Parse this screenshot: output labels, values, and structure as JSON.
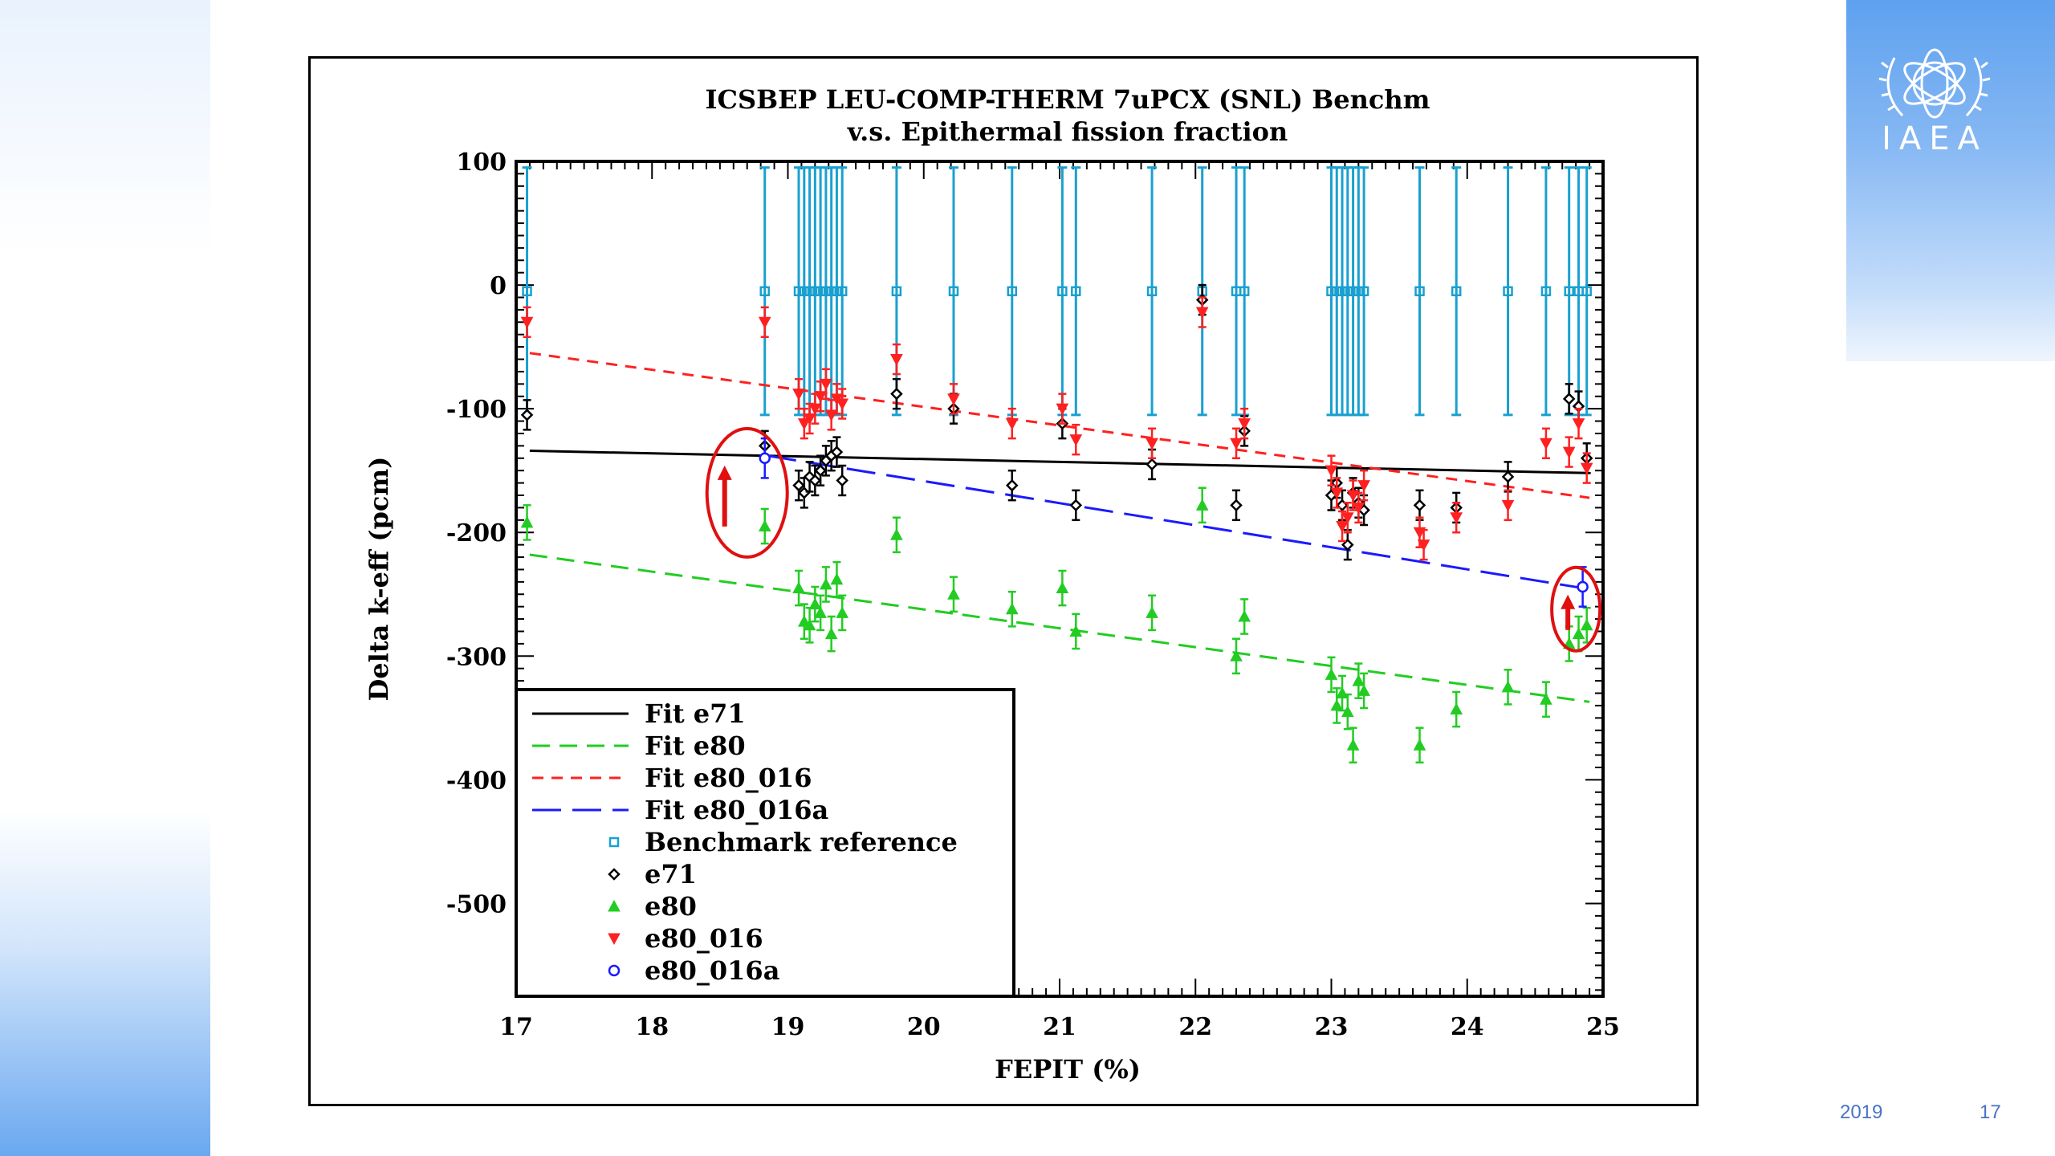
{
  "slide": {
    "footer_date": "2019",
    "page_number": "17",
    "logo_text": "IAEA"
  },
  "colors": {
    "e71": "#000000",
    "e80": "#22cc22",
    "e80_016": "#ff2020",
    "e80_016a": "#1a1aff",
    "benchmark": "#1aa0d0",
    "highlight": "#e01010"
  },
  "chart_data": {
    "type": "scatter",
    "title": "ICSBEP LEU-COMP-THERM 7uPCX (SNL) Benchm",
    "subtitle": "v.s. Epithermal fission fraction",
    "xlabel": "FEPIT (%)",
    "ylabel": "Delta k-eff (pcm)",
    "xlim": [
      17,
      25
    ],
    "ylim": [
      -575,
      100
    ],
    "xticks": [
      "17",
      "18",
      "19",
      "20",
      "21",
      "22",
      "23",
      "24",
      "25"
    ],
    "yticks": [
      "100",
      "0",
      "-100",
      "-200",
      "-300",
      "-400",
      "-500"
    ],
    "grid": false,
    "legend_position": "bottom-left",
    "legend": [
      {
        "key": "fit_e71",
        "label": "Fit e71"
      },
      {
        "key": "fit_e80",
        "label": "Fit e80"
      },
      {
        "key": "fit_e80_016",
        "label": "Fit e80_016"
      },
      {
        "key": "fit_e80_016a",
        "label": "Fit e80_016a"
      },
      {
        "key": "benchmark",
        "label": "Benchmark reference"
      },
      {
        "key": "e71",
        "label": "e71"
      },
      {
        "key": "e80",
        "label": "e80"
      },
      {
        "key": "e80_016",
        "label": "e80_016"
      },
      {
        "key": "e80_016a",
        "label": "e80_016a"
      }
    ],
    "fits": [
      {
        "name": "Fit e71",
        "x": [
          17.1,
          24.9
        ],
        "y": [
          -134,
          -152
        ]
      },
      {
        "name": "Fit e80",
        "x": [
          17.1,
          24.9
        ],
        "y": [
          -218,
          -337
        ]
      },
      {
        "name": "Fit e80_016",
        "x": [
          17.1,
          24.9
        ],
        "y": [
          -55,
          -172
        ]
      },
      {
        "name": "Fit e80_016a",
        "x": [
          18.85,
          24.85
        ],
        "y": [
          -138,
          -245
        ]
      }
    ],
    "benchmark_reference": {
      "y": -5,
      "error": 100,
      "x": [
        17.08,
        18.83,
        19.08,
        19.12,
        19.16,
        19.2,
        19.24,
        19.28,
        19.32,
        19.36,
        19.4,
        19.8,
        20.22,
        20.65,
        21.02,
        21.12,
        21.68,
        22.05,
        22.3,
        22.36,
        23.0,
        23.04,
        23.08,
        23.12,
        23.16,
        23.2,
        23.24,
        23.65,
        23.92,
        24.3,
        24.58,
        24.75,
        24.82,
        24.88
      ]
    },
    "series": [
      {
        "name": "e71",
        "x": [
          17.08,
          18.83,
          19.08,
          19.12,
          19.16,
          19.2,
          19.24,
          19.28,
          19.32,
          19.36,
          19.4,
          19.8,
          20.22,
          20.65,
          21.02,
          21.12,
          21.68,
          22.05,
          22.3,
          22.36,
          23.0,
          23.04,
          23.08,
          23.12,
          23.16,
          23.2,
          23.24,
          23.65,
          23.92,
          24.3,
          24.75,
          24.82,
          24.88
        ],
        "y": [
          -105,
          -130,
          -162,
          -168,
          -155,
          -158,
          -150,
          -142,
          -138,
          -135,
          -158,
          -88,
          -100,
          -162,
          -112,
          -178,
          -145,
          -12,
          -178,
          -118,
          -170,
          -160,
          -178,
          -210,
          -168,
          -176,
          -182,
          -178,
          -180,
          -155,
          -92,
          -98,
          -140
        ],
        "error": 12
      },
      {
        "name": "e80",
        "x": [
          17.08,
          18.83,
          19.08,
          19.12,
          19.16,
          19.2,
          19.24,
          19.28,
          19.32,
          19.36,
          19.4,
          19.8,
          20.22,
          20.65,
          21.02,
          21.12,
          21.68,
          22.05,
          22.3,
          22.36,
          23.0,
          23.04,
          23.08,
          23.12,
          23.16,
          23.2,
          23.24,
          23.65,
          23.92,
          24.3,
          24.58,
          24.75,
          24.82,
          24.88
        ],
        "y": [
          -192,
          -195,
          -245,
          -272,
          -275,
          -258,
          -265,
          -242,
          -282,
          -238,
          -265,
          -202,
          -250,
          -262,
          -245,
          -280,
          -265,
          -178,
          -300,
          -268,
          -315,
          -340,
          -330,
          -345,
          -372,
          -320,
          -328,
          -372,
          -343,
          -325,
          -335,
          -290,
          -282,
          -275
        ],
        "error": 14
      },
      {
        "name": "e80_016",
        "x": [
          17.08,
          18.83,
          19.08,
          19.12,
          19.16,
          19.2,
          19.24,
          19.28,
          19.32,
          19.36,
          19.4,
          19.8,
          20.22,
          20.65,
          21.02,
          21.12,
          21.68,
          22.05,
          22.3,
          22.36,
          23.0,
          23.04,
          23.08,
          23.12,
          23.16,
          23.2,
          23.24,
          23.65,
          23.68,
          23.92,
          24.3,
          24.58,
          24.75,
          24.82,
          24.88
        ],
        "y": [
          -30,
          -30,
          -88,
          -112,
          -108,
          -100,
          -90,
          -80,
          -105,
          -92,
          -96,
          -60,
          -92,
          -112,
          -100,
          -125,
          -128,
          -22,
          -128,
          -112,
          -150,
          -168,
          -195,
          -188,
          -170,
          -180,
          -162,
          -200,
          -210,
          -188,
          -178,
          -128,
          -135,
          -112,
          -148
        ],
        "error": 12
      },
      {
        "name": "e80_016a",
        "x": [
          18.83,
          24.85
        ],
        "y": [
          -140,
          -244
        ],
        "error": 16
      }
    ],
    "annotations": [
      {
        "type": "ellipse-highlight",
        "x": 18.7,
        "y": -168,
        "note": "upward arrow"
      },
      {
        "type": "ellipse-highlight",
        "x": 24.8,
        "y": -262,
        "note": "upward arrow"
      }
    ]
  }
}
